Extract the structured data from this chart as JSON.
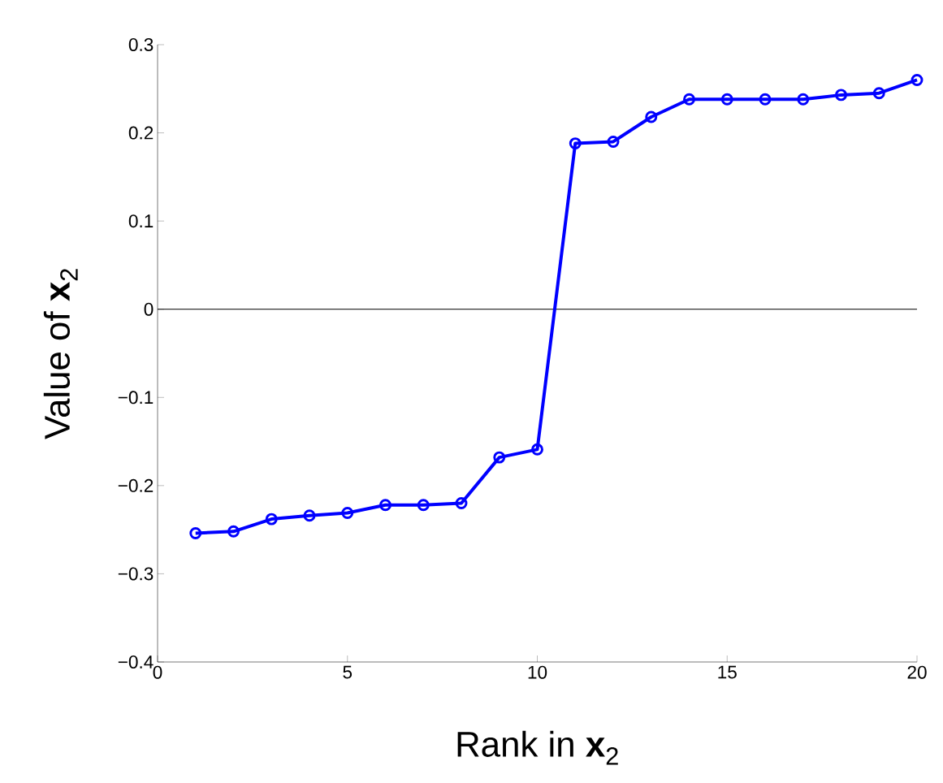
{
  "chart_data": {
    "type": "line",
    "xlabel": "Rank in **x**$_{2}$",
    "ylabel": "Value of **x**$_{2}$",
    "x": [
      1,
      2,
      3,
      4,
      5,
      6,
      7,
      8,
      9,
      10,
      11,
      12,
      13,
      14,
      15,
      16,
      17,
      18,
      19,
      20
    ],
    "series": [
      {
        "color": "#0000ff",
        "values": [
          -0.254,
          -0.252,
          -0.238,
          -0.234,
          -0.231,
          -0.222,
          -0.222,
          -0.22,
          -0.168,
          -0.159,
          0.188,
          0.19,
          0.218,
          0.238,
          0.238,
          0.238,
          0.238,
          0.243,
          0.245,
          0.26
        ]
      }
    ],
    "xlim": [
      0,
      20
    ],
    "ylim": [
      -0.4,
      0.3
    ],
    "xticks": [
      0,
      5,
      10,
      15,
      20
    ],
    "yticks": [
      {
        "value": -0.4,
        "label": "−0.4"
      },
      {
        "value": -0.3,
        "label": "−0.3"
      },
      {
        "value": -0.2,
        "label": "−0.2"
      },
      {
        "value": -0.1,
        "label": "−0.1"
      },
      0,
      0.1,
      0.2,
      0.3
    ],
    "ref_lines": [
      {
        "axis": "y",
        "value": 0,
        "color": "#000000"
      }
    ],
    "marker": "circle",
    "line_style": "solid",
    "grid": false
  }
}
